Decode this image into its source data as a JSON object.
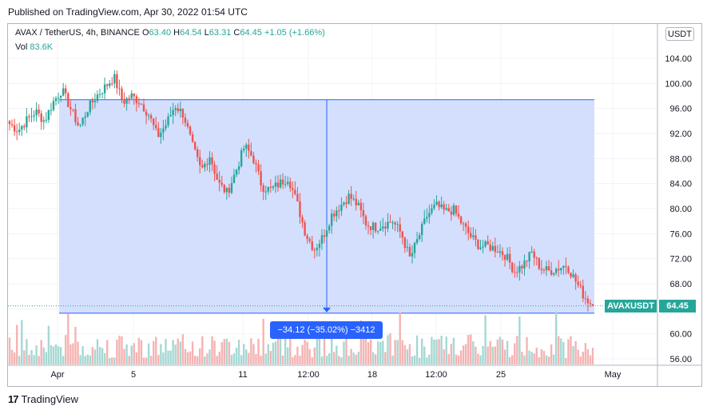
{
  "publish_text": "Published on TradingView.com, Apr 30, 2022 01:54 UTC",
  "legend": {
    "symbol": "AVAX / TetherUS, 4h, BINANCE",
    "o_label": "O",
    "o": "63.40",
    "h_label": "H",
    "h": "64.54",
    "l_label": "L",
    "l": "63.31",
    "c_label": "C",
    "c": "64.45",
    "change": "+1.05 (+1.66%)",
    "vol_label": "Vol",
    "vol": "83.6K"
  },
  "currency_button": "USDT",
  "price_tag": {
    "symbol": "AVAXUSDT",
    "price": "64.45"
  },
  "measure_label": "−34.12 (−35.02%) −3412",
  "logo_text": "TradingView",
  "colors": {
    "up": "#26a69a",
    "down": "#ef5350",
    "measure": "#2962ff",
    "measure_fill": "#d3dffd"
  },
  "chart_data": {
    "type": "candlestick",
    "y_ticks": [
      "104.00",
      "100.00",
      "96.00",
      "92.00",
      "88.00",
      "84.00",
      "80.00",
      "76.00",
      "72.00",
      "68.00",
      "64.00",
      "60.00",
      "56.00"
    ],
    "ylim": [
      55,
      106
    ],
    "x_ticks": [
      "Apr",
      "5",
      "11",
      "12:00",
      "18",
      "12:00",
      "25",
      "May"
    ],
    "measure": {
      "start_price": 97.4,
      "end_price": 63.3,
      "change": -34.12,
      "pct": -35.02
    },
    "close_path": [
      93.5,
      92.5,
      94.2,
      95.5,
      94.0,
      97.0,
      99.0,
      96.0,
      93.0,
      96.0,
      98.0,
      99.5,
      101.0,
      97.0,
      98.0,
      97.0,
      95.0,
      91.5,
      93.5,
      96.5,
      95.0,
      90.0,
      86.0,
      88.5,
      84.0,
      82.5,
      86.0,
      90.0,
      88.0,
      83.5,
      83.0,
      84.0,
      85.0,
      81.0,
      76.0,
      73.5,
      75.5,
      79.0,
      80.5,
      82.0,
      80.5,
      77.5,
      77.0,
      77.5,
      78.0,
      76.0,
      72.0,
      75.5,
      79.0,
      80.5,
      79.5,
      79.8,
      77.5,
      75.5,
      74.0,
      74.0,
      73.5,
      72.5,
      70.0,
      71.0,
      73.0,
      70.5,
      70.0,
      70.5,
      71.0,
      68.5,
      66.0,
      64.5
    ]
  }
}
